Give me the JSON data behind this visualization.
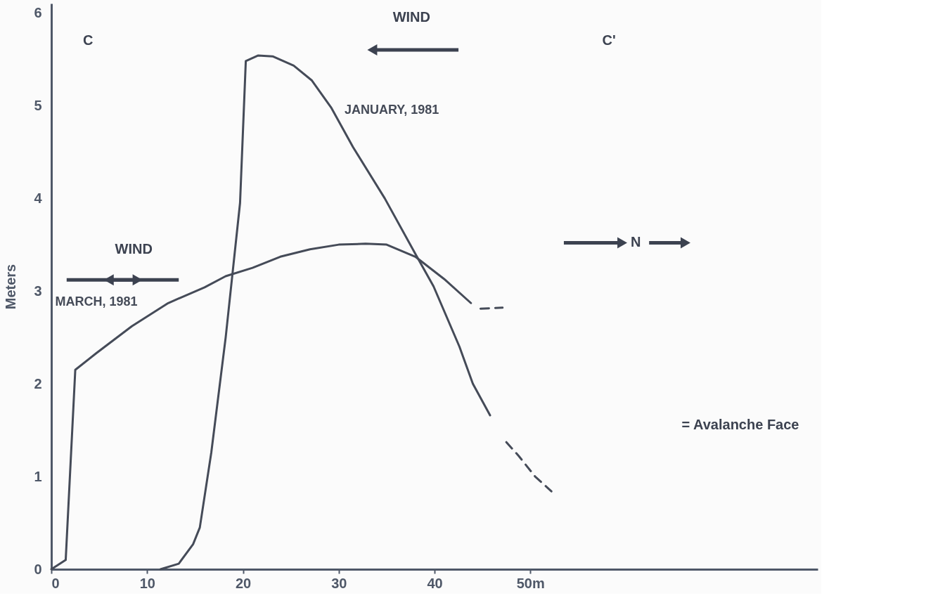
{
  "chart_data": {
    "type": "line",
    "ylabel": "Meters",
    "xlim": [
      0,
      80
    ],
    "xticks": [
      0,
      10,
      20,
      30,
      40,
      {
        "value": 50,
        "label": "50m"
      }
    ],
    "ylim": [
      0,
      6.1
    ],
    "yticks": [
      0,
      1,
      2,
      3,
      4,
      5,
      6
    ],
    "series": [
      {
        "name": "MARCH, 1981",
        "color": "#454b58",
        "line_style": "solid",
        "x": [
          0,
          1.5,
          2.5,
          4.7,
          8.4,
          12.2,
          16,
          18.2,
          21,
          23.9,
          27,
          30,
          32.8,
          35,
          38,
          41,
          43.8
        ],
        "values": [
          0,
          0.1,
          2.15,
          2.33,
          2.62,
          2.87,
          3.04,
          3.16,
          3.25,
          3.37,
          3.45,
          3.5,
          3.51,
          3.5,
          3.37,
          3.13,
          2.87
        ]
      },
      {
        "color": "#454b58",
        "line_style": "dashed",
        "x": [
          44.8,
          47.1
        ],
        "values": [
          2.81,
          2.82
        ]
      },
      {
        "name": "JANUARY, 1981",
        "color": "#454b58",
        "line_style": "solid",
        "x": [
          11.4,
          13.3,
          14.8,
          15.5,
          16.7,
          18.2,
          19.7,
          20.3,
          21.6,
          23.1,
          25.3,
          27.2,
          29.2,
          31.5,
          34.8,
          38,
          39.9,
          42.6,
          44,
          45.8
        ],
        "values": [
          0,
          0.06,
          0.27,
          0.45,
          1.26,
          2.5,
          3.95,
          5.48,
          5.54,
          5.53,
          5.43,
          5.27,
          4.98,
          4.55,
          4.0,
          3.4,
          3.05,
          2.4,
          2.0,
          1.66
        ]
      },
      {
        "color": "#454b58",
        "line_style": "dashed",
        "x": [
          47.5,
          48.8,
          50.5,
          52.2
        ],
        "values": [
          1.37,
          1.22,
          1.0,
          0.84
        ]
      }
    ],
    "annotations": [
      "C",
      "C'",
      "WIND",
      "WIND",
      "N",
      "= Avalanche Face"
    ],
    "grid": false,
    "marker": "none"
  }
}
